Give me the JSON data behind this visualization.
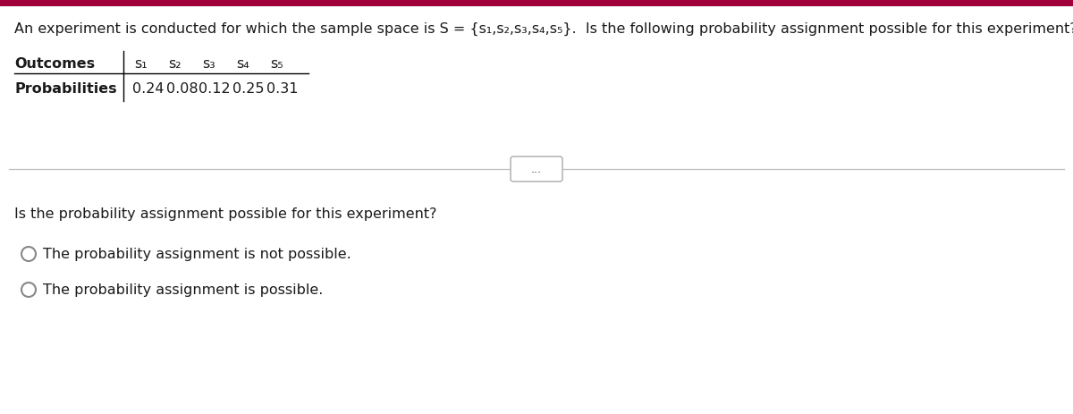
{
  "top_bar_color": "#a0003a",
  "bg_color": "#ffffff",
  "text_color": "#1a1a1a",
  "title_line": "An experiment is conducted for which the sample space is S = {s₁,s₂,s₃,s₄,s₅}.  Is the following probability assignment possible for this experiment?",
  "outcomes_label": "Outcomes",
  "probabilities_label": "Probabilities",
  "outcomes": [
    "s₁",
    "s₂",
    "s₃",
    "s₄",
    "s₅"
  ],
  "probabilities": [
    "0.24",
    "0.08",
    "0.12",
    "0.25",
    "0.31"
  ],
  "divider_label": "...",
  "question": "Is the probability assignment possible for this experiment?",
  "option1": "The probability assignment is not possible.",
  "option2": "The probability assignment is possible.",
  "circle_edge_color": "#888888",
  "divider_color": "#bbbbbb",
  "font_size_title": 11.5,
  "font_size_table": 11.5,
  "font_size_question": 11.5,
  "font_size_options": 11.5
}
